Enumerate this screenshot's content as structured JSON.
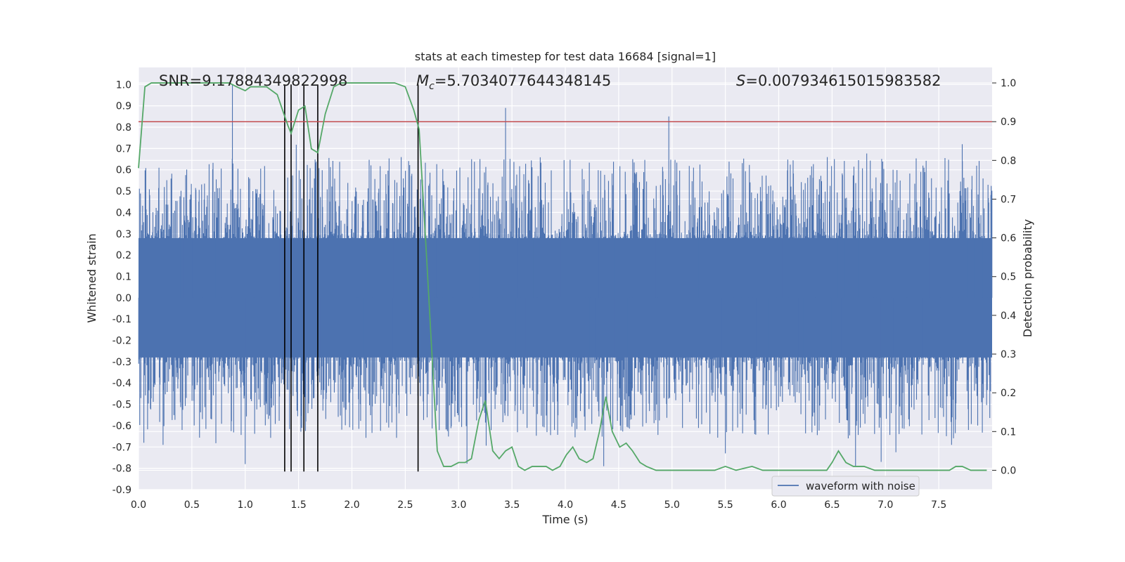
{
  "chart_data": {
    "type": "line",
    "title": "stats at each timestep for test data 16684 [signal=1]",
    "xlabel": "Time (s)",
    "ylabel": "Whitened strain",
    "ylabel_right": "Detection probability",
    "xlim": [
      0.0,
      8.0
    ],
    "ylim": [
      -0.9,
      1.08
    ],
    "ylim_right": [
      -0.05,
      1.04
    ],
    "xticks": [
      "0.0",
      "0.5",
      "1.0",
      "1.5",
      "2.0",
      "2.5",
      "3.0",
      "3.5",
      "4.0",
      "4.5",
      "5.0",
      "5.5",
      "6.0",
      "6.5",
      "7.0",
      "7.5"
    ],
    "xtick_values": [
      0.0,
      0.5,
      1.0,
      1.5,
      2.0,
      2.5,
      3.0,
      3.5,
      4.0,
      4.5,
      5.0,
      5.5,
      6.0,
      6.5,
      7.0,
      7.5
    ],
    "yticks": [
      "-0.9",
      "-0.8",
      "-0.7",
      "-0.6",
      "-0.5",
      "-0.4",
      "-0.3",
      "-0.2",
      "-0.1",
      "0.0",
      "0.1",
      "0.2",
      "0.3",
      "0.4",
      "0.5",
      "0.6",
      "0.7",
      "0.8",
      "0.9",
      "1.0"
    ],
    "ytick_values": [
      -0.9,
      -0.8,
      -0.7,
      -0.6,
      -0.5,
      -0.4,
      -0.3,
      -0.2,
      -0.1,
      0.0,
      0.1,
      0.2,
      0.3,
      0.4,
      0.5,
      0.6,
      0.7,
      0.8,
      0.9,
      1.0
    ],
    "yticks_right": [
      "0.0",
      "0.1",
      "0.2",
      "0.3",
      "0.4",
      "0.5",
      "0.6",
      "0.7",
      "0.8",
      "0.9",
      "1.0"
    ],
    "ytick_values_right": [
      0.0,
      0.1,
      0.2,
      0.3,
      0.4,
      0.5,
      0.6,
      0.7,
      0.8,
      0.9,
      1.0
    ],
    "annotations": {
      "snr": "SNR=9.17884349822998",
      "mc_symbol": "M",
      "mc_sub": "c",
      "mc_value": "=5.7034077644348145",
      "s_symbol": "S",
      "s_value": "=0.007934615015983582"
    },
    "threshold_right": 0.9,
    "vlines_x": [
      1.37,
      1.43,
      1.55,
      1.68,
      2.62
    ],
    "waveform": {
      "name": "waveform with noise",
      "band_amplitude": 0.28,
      "notable_spikes": [
        {
          "t": 0.88,
          "v": 1.0
        },
        {
          "t": 0.05,
          "v": -0.68
        },
        {
          "t": 0.23,
          "v": -0.69
        },
        {
          "t": 1.0,
          "v": -0.78
        },
        {
          "t": 1.53,
          "v": -0.61
        },
        {
          "t": 3.44,
          "v": 0.89
        },
        {
          "t": 3.2,
          "v": 0.65
        },
        {
          "t": 4.97,
          "v": 0.85
        },
        {
          "t": 4.36,
          "v": -0.79
        },
        {
          "t": 5.5,
          "v": -0.73
        },
        {
          "t": 6.72,
          "v": -0.79
        },
        {
          "t": 6.96,
          "v": -0.77
        },
        {
          "t": 7.72,
          "v": 0.72
        },
        {
          "t": 7.62,
          "v": -0.69
        }
      ]
    },
    "probability_series": {
      "name": "detection probability",
      "x": [
        0.0,
        0.06,
        0.12,
        0.3,
        0.5,
        0.7,
        0.85,
        0.92,
        1.0,
        1.05,
        1.1,
        1.2,
        1.3,
        1.35,
        1.4,
        1.43,
        1.5,
        1.56,
        1.62,
        1.68,
        1.75,
        1.83,
        1.9,
        2.0,
        2.1,
        2.2,
        2.3,
        2.4,
        2.5,
        2.58,
        2.63,
        2.7,
        2.75,
        2.8,
        2.86,
        2.93,
        3.0,
        3.06,
        3.12,
        3.19,
        3.25,
        3.32,
        3.38,
        3.44,
        3.5,
        3.56,
        3.62,
        3.69,
        3.75,
        3.82,
        3.88,
        3.95,
        4.01,
        4.07,
        4.13,
        4.2,
        4.26,
        4.32,
        4.38,
        4.44,
        4.51,
        4.57,
        4.63,
        4.7,
        4.76,
        4.85,
        5.0,
        5.2,
        5.4,
        5.5,
        5.6,
        5.75,
        5.85,
        6.0,
        6.2,
        6.4,
        6.45,
        6.5,
        6.56,
        6.63,
        6.7,
        6.8,
        6.9,
        7.0,
        7.1,
        7.2,
        7.4,
        7.6,
        7.66,
        7.72,
        7.8,
        7.9,
        7.95
      ],
      "y": [
        0.78,
        0.99,
        1.0,
        1.0,
        1.0,
        1.0,
        1.0,
        0.99,
        0.98,
        0.99,
        0.99,
        0.99,
        0.97,
        0.93,
        0.89,
        0.87,
        0.93,
        0.94,
        0.83,
        0.82,
        0.92,
        0.99,
        1.0,
        1.0,
        1.0,
        1.0,
        1.0,
        1.0,
        0.99,
        0.93,
        0.88,
        0.55,
        0.3,
        0.05,
        0.01,
        0.01,
        0.02,
        0.02,
        0.03,
        0.13,
        0.18,
        0.05,
        0.03,
        0.05,
        0.06,
        0.01,
        0.0,
        0.01,
        0.01,
        0.01,
        0.0,
        0.01,
        0.04,
        0.06,
        0.03,
        0.02,
        0.03,
        0.1,
        0.19,
        0.1,
        0.06,
        0.07,
        0.05,
        0.02,
        0.01,
        0.0,
        0.0,
        0.0,
        0.0,
        0.01,
        0.0,
        0.01,
        0.0,
        0.0,
        0.0,
        0.0,
        0.0,
        0.02,
        0.05,
        0.02,
        0.01,
        0.01,
        0.0,
        0.0,
        0.0,
        0.0,
        0.0,
        0.0,
        0.01,
        0.01,
        0.0,
        0.0,
        0.0
      ]
    },
    "legend": {
      "label": "waveform with noise",
      "location": "lower-right"
    },
    "colors": {
      "background": "#EAEAF2",
      "grid": "#FFFFFF",
      "waveform": "#4C72B0",
      "probability": "#55A868",
      "threshold": "#C44E52",
      "vlines": "#000000",
      "text": "#262626"
    },
    "grid": true
  }
}
